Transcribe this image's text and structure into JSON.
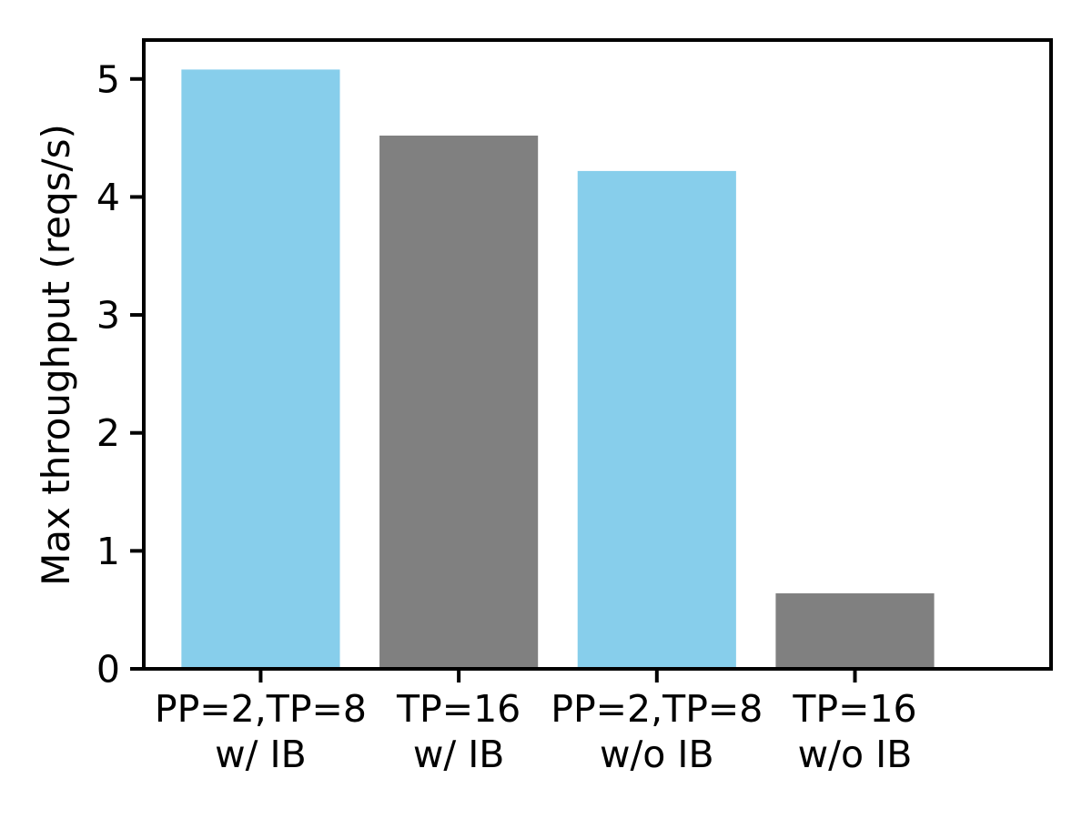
{
  "chart_data": {
    "type": "bar",
    "title": "",
    "xlabel": "",
    "ylabel": "Max throughput (reqs/s)",
    "categories": [
      [
        "PP=2,TP=8",
        "w/ IB"
      ],
      [
        "TP=16",
        "w/ IB"
      ],
      [
        "PP=2,TP=8",
        "w/o IB"
      ],
      [
        "TP=16",
        "w/o IB"
      ]
    ],
    "values": [
      5.08,
      4.52,
      4.22,
      0.64
    ],
    "bar_colors": [
      "#87CEEB",
      "#808080",
      "#87CEEB",
      "#808080"
    ],
    "ylim": [
      0,
      5.33
    ],
    "yticks": [
      0,
      1,
      2,
      3,
      4,
      5
    ],
    "bar_width_fraction": 0.8,
    "grid": false,
    "legend": null,
    "spine_color": "#000000",
    "background_color": "#ffffff"
  }
}
